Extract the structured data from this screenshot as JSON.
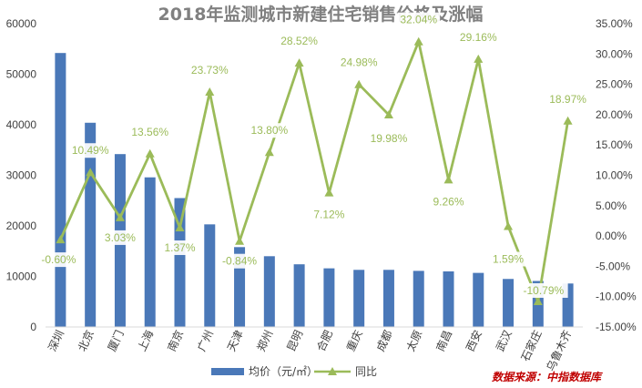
{
  "chart_data": {
    "type": "bar+line",
    "title": "2018年监测城市新建住宅销售价格及涨幅",
    "categories": [
      "深圳",
      "北京",
      "厦门",
      "上海",
      "南京",
      "广州",
      "天津",
      "郑州",
      "昆明",
      "合肥",
      "重庆",
      "成都",
      "太原",
      "南昌",
      "西安",
      "武汉",
      "石家庄",
      "乌鲁木齐"
    ],
    "series": [
      {
        "name": "均价（元/㎡）",
        "type": "bar",
        "axis": "left",
        "values": [
          54200,
          40400,
          34200,
          29600,
          25500,
          20300,
          15800,
          14000,
          12400,
          11600,
          11300,
          11300,
          11100,
          11000,
          10700,
          9500,
          9100,
          8600
        ]
      },
      {
        "name": "同比",
        "type": "line",
        "axis": "right",
        "values": [
          -0.6,
          10.49,
          3.03,
          13.56,
          1.37,
          23.73,
          -0.84,
          13.8,
          28.52,
          7.12,
          24.98,
          19.98,
          32.04,
          9.26,
          29.16,
          1.59,
          -10.79,
          18.97
        ],
        "labels": [
          "-0.60%",
          "10.49%",
          "3.03%",
          "13.56%",
          "1.37%",
          "23.73%",
          "-0.84%",
          "13.80%",
          "28.52%",
          "7.12%",
          "24.98%",
          "19.98%",
          "32.04%",
          "9.26%",
          "29.16%",
          "1.59%",
          "-10.79%",
          "18.97%"
        ]
      }
    ],
    "y_left": {
      "min": 0,
      "max": 60000,
      "ticks": [
        "0",
        "10000",
        "20000",
        "30000",
        "40000",
        "50000",
        "60000"
      ]
    },
    "y_right": {
      "min": -15,
      "max": 35,
      "ticks": [
        "-15.00%",
        "-10.00%",
        "-5.00%",
        "0.00%",
        "5.00%",
        "10.00%",
        "15.00%",
        "20.00%",
        "25.00%",
        "30.00%",
        "35.00%"
      ]
    },
    "legend_position": "bottom",
    "grid": false,
    "colors": {
      "bar": "#4a78b8",
      "line": "#9bbb59",
      "title": "#808080",
      "source": "#c00000"
    }
  },
  "source_note": "数据来源：中指数据库"
}
